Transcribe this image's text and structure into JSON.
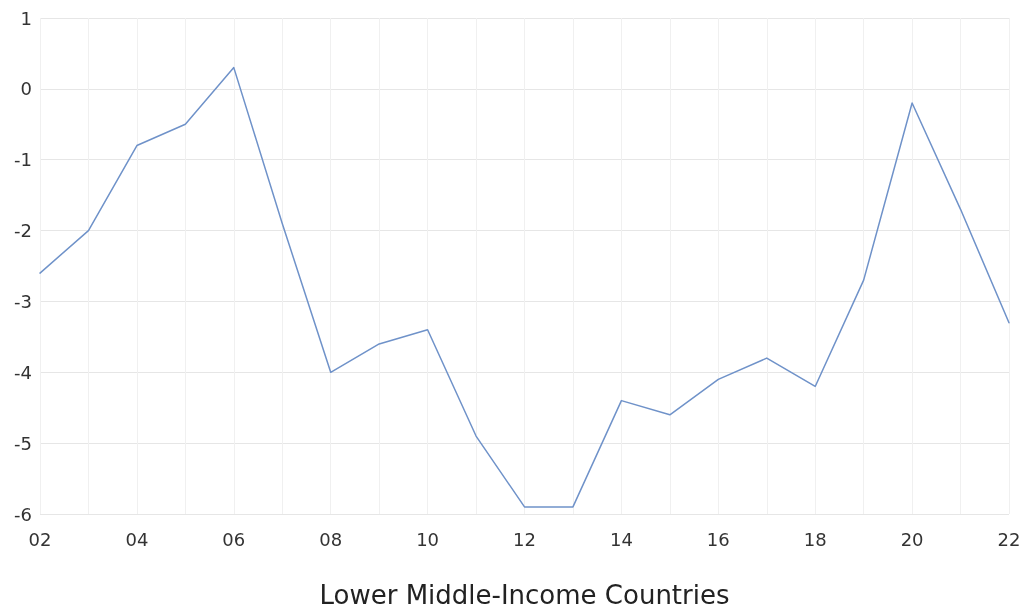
{
  "chart_data": {
    "type": "line",
    "xlabel": "Lower Middle-Income Countries",
    "categories": [
      "02",
      null,
      "04",
      null,
      "06",
      null,
      "08",
      null,
      "10",
      null,
      "12",
      null,
      "14",
      null,
      "16",
      null,
      "18",
      null,
      "20",
      null,
      "22"
    ],
    "series": [
      {
        "color": "#6f92c9",
        "values": [
          -2.6,
          -2.0,
          -0.8,
          -0.5,
          0.3,
          -1.9,
          -4.0,
          -3.6,
          -3.4,
          -4.9,
          -5.9,
          -5.9,
          -4.4,
          -4.6,
          -4.1,
          -3.8,
          -4.2,
          -2.7,
          -0.2,
          -1.7,
          -3.3
        ]
      }
    ],
    "ylim": [
      -6,
      1
    ],
    "yticks": [
      -6,
      -5,
      -4,
      -3,
      -2,
      -1,
      0,
      1
    ],
    "grid": true,
    "marker": "none",
    "line_style": "solid"
  }
}
